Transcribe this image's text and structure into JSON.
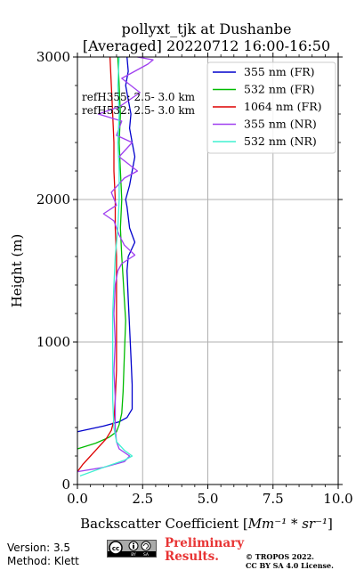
{
  "chart_data": {
    "type": "line",
    "title_line1": "pollyxt_tjk at Dushanbe",
    "title_line2": "[Averaged] 20220712 16:00-16:50",
    "xlabel": "Backscatter Coefficient [",
    "xlabel_unit": "Mm⁻¹ * sr⁻¹",
    "xlabel_end": "]",
    "ylabel": "Height (m)",
    "xlim": [
      0,
      10
    ],
    "ylim": [
      0,
      3000
    ],
    "x_ticks": [
      "0.0",
      "2.5",
      "5.0",
      "7.5",
      "10.0"
    ],
    "x_tick_values": [
      0,
      2.5,
      5.0,
      7.5,
      10.0
    ],
    "y_ticks": [
      "0",
      "1000",
      "2000",
      "3000"
    ],
    "y_tick_values": [
      0,
      1000,
      2000,
      3000
    ],
    "grid": true,
    "legend_position": "top-right",
    "annotations": [
      "refH355:  2.5- 3.0 km",
      "refH532:  2.5- 3.0 km"
    ],
    "series": [
      {
        "name": "355 nm (FR)",
        "color": "#0000cc",
        "width": 1.3,
        "points": [
          [
            0,
            370
          ],
          [
            1.0,
            410
          ],
          [
            1.6,
            440
          ],
          [
            1.9,
            470
          ],
          [
            2.1,
            530
          ],
          [
            2.1,
            700
          ],
          [
            2.05,
            900
          ],
          [
            2.0,
            1100
          ],
          [
            1.95,
            1300
          ],
          [
            1.9,
            1500
          ],
          [
            1.95,
            1600
          ],
          [
            2.2,
            1700
          ],
          [
            2.0,
            1800
          ],
          [
            1.9,
            1950
          ],
          [
            1.85,
            2000
          ],
          [
            2.0,
            2100
          ],
          [
            2.1,
            2200
          ],
          [
            2.2,
            2300
          ],
          [
            2.1,
            2400
          ],
          [
            2.0,
            2500
          ],
          [
            2.05,
            2600
          ],
          [
            1.95,
            2700
          ],
          [
            1.85,
            2800
          ],
          [
            1.95,
            2900
          ],
          [
            1.9,
            3000
          ]
        ]
      },
      {
        "name": "532 nm (FR)",
        "color": "#00bb00",
        "width": 1.3,
        "points": [
          [
            0,
            250
          ],
          [
            0.7,
            290
          ],
          [
            1.2,
            330
          ],
          [
            1.5,
            370
          ],
          [
            1.6,
            420
          ],
          [
            1.7,
            500
          ],
          [
            1.75,
            650
          ],
          [
            1.8,
            900
          ],
          [
            1.85,
            1150
          ],
          [
            1.8,
            1300
          ],
          [
            1.75,
            1450
          ],
          [
            1.7,
            1600
          ],
          [
            1.65,
            1800
          ],
          [
            1.7,
            2000
          ],
          [
            1.65,
            2200
          ],
          [
            1.6,
            2400
          ],
          [
            1.65,
            2600
          ],
          [
            1.6,
            2800
          ],
          [
            1.55,
            3000
          ]
        ]
      },
      {
        "name": "1064 nm (FR)",
        "color": "#dd0000",
        "width": 1.3,
        "points": [
          [
            0,
            90
          ],
          [
            0.2,
            140
          ],
          [
            0.5,
            200
          ],
          [
            0.8,
            260
          ],
          [
            1.1,
            320
          ],
          [
            1.3,
            380
          ],
          [
            1.4,
            450
          ],
          [
            1.45,
            600
          ],
          [
            1.5,
            800
          ],
          [
            1.5,
            1000
          ],
          [
            1.5,
            1200
          ],
          [
            1.5,
            1400
          ],
          [
            1.5,
            1600
          ],
          [
            1.45,
            1800
          ],
          [
            1.45,
            2000
          ],
          [
            1.4,
            2200
          ],
          [
            1.4,
            2400
          ],
          [
            1.35,
            2600
          ],
          [
            1.3,
            2800
          ],
          [
            1.25,
            3000
          ]
        ]
      },
      {
        "name": "355 nm (NR)",
        "color": "#a040f0",
        "width": 1.3,
        "points": [
          [
            0,
            90
          ],
          [
            1.0,
            120
          ],
          [
            1.8,
            160
          ],
          [
            2.0,
            200
          ],
          [
            1.6,
            250
          ],
          [
            1.5,
            300
          ],
          [
            1.45,
            400
          ],
          [
            1.45,
            600
          ],
          [
            1.4,
            800
          ],
          [
            1.45,
            1000
          ],
          [
            1.4,
            1200
          ],
          [
            1.45,
            1400
          ],
          [
            1.55,
            1500
          ],
          [
            1.7,
            1550
          ],
          [
            2.2,
            1610
          ],
          [
            1.8,
            1680
          ],
          [
            1.6,
            1750
          ],
          [
            1.4,
            1850
          ],
          [
            1.0,
            1900
          ],
          [
            1.5,
            1960
          ],
          [
            1.3,
            2050
          ],
          [
            1.8,
            2150
          ],
          [
            2.3,
            2200
          ],
          [
            1.6,
            2300
          ],
          [
            2.1,
            2400
          ],
          [
            1.5,
            2450
          ],
          [
            1.7,
            2550
          ],
          [
            0.8,
            2600
          ],
          [
            1.6,
            2650
          ],
          [
            2.4,
            2750
          ],
          [
            1.7,
            2850
          ],
          [
            2.7,
            2950
          ],
          [
            2.9,
            2980
          ],
          [
            2.3,
            3000
          ]
        ]
      },
      {
        "name": "532 nm (NR)",
        "color": "#40f0d0",
        "width": 1.3,
        "points": [
          [
            0.1,
            60
          ],
          [
            1.0,
            120
          ],
          [
            1.8,
            170
          ],
          [
            2.1,
            200
          ],
          [
            1.8,
            240
          ],
          [
            1.5,
            300
          ],
          [
            1.4,
            400
          ],
          [
            1.35,
            600
          ],
          [
            1.35,
            800
          ],
          [
            1.35,
            1000
          ],
          [
            1.35,
            1200
          ],
          [
            1.4,
            1400
          ],
          [
            1.45,
            1600
          ],
          [
            1.55,
            1800
          ],
          [
            1.6,
            2000
          ],
          [
            1.6,
            2200
          ],
          [
            1.55,
            2400
          ],
          [
            1.6,
            2600
          ],
          [
            1.55,
            2800
          ],
          [
            1.6,
            3000
          ]
        ]
      }
    ]
  },
  "footer": {
    "version": "Version: 3.5",
    "method": "Method: Klett",
    "preliminary_1": "Preliminary",
    "preliminary_2": "Results.",
    "copyright_1": "© TROPOS 2022.",
    "copyright_2": "CC BY SA 4.0 License."
  },
  "license_badge": {
    "icon": "cc-by-sa-badge",
    "lettering": [
      "cc",
      "BY",
      "SA"
    ]
  }
}
